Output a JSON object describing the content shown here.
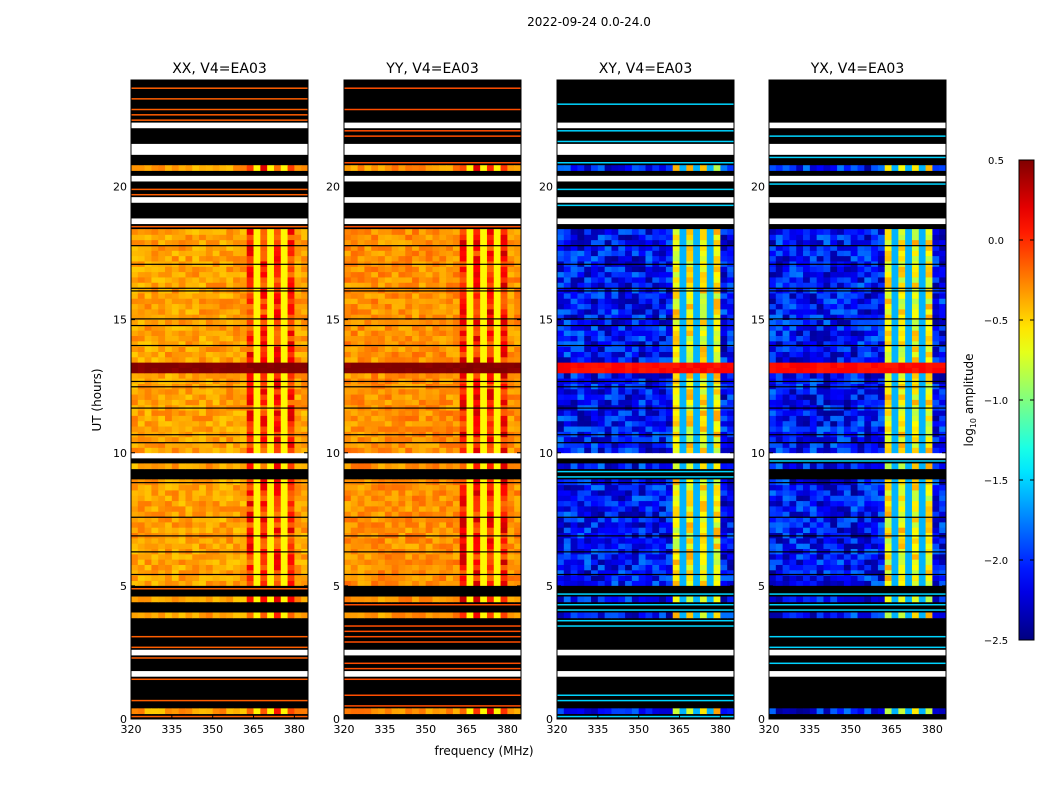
{
  "figure": {
    "suptitle": "2022-09-24 0.0-24.0",
    "ylabel": "UT (hours)",
    "xlabel": "frequency (MHz)"
  },
  "colorbar": {
    "label_prefix": "log",
    "label_sub": "10",
    "label_suffix": " amplitude",
    "range": [
      -2.5,
      0.5
    ],
    "ticks": [
      0.5,
      0.0,
      -0.5,
      -1.0,
      -1.5,
      -2.0,
      -2.5
    ],
    "tick_labels": [
      "0.5",
      "0.0",
      "−0.5",
      "−1.0",
      "−1.5",
      "−2.0",
      "−2.5"
    ],
    "colormap": "jet"
  },
  "chart_data": [
    {
      "type": "heatmap",
      "title": "XX, V4=EA03",
      "xlabel": "",
      "ylabel": "UT (hours)",
      "xlim": [
        320,
        385
      ],
      "ylim": [
        0,
        24
      ],
      "xticks": [
        320,
        335,
        350,
        365,
        380
      ],
      "yticks": [
        0,
        5,
        10,
        15,
        20
      ],
      "product": "auto",
      "base_level": -0.35,
      "rfi_band_MHz": [
        362,
        380
      ],
      "rfi_level": 0.0,
      "flare_hours": [
        12.9,
        13.4
      ],
      "flare_level": 0.5
    },
    {
      "type": "heatmap",
      "title": "YY, V4=EA03",
      "xlabel": "frequency (MHz)",
      "ylabel": "",
      "xlim": [
        320,
        385
      ],
      "ylim": [
        0,
        24
      ],
      "xticks": [
        320,
        335,
        350,
        365,
        380
      ],
      "yticks": [
        0,
        5,
        10,
        15,
        20
      ],
      "product": "auto",
      "base_level": -0.3,
      "rfi_band_MHz": [
        362,
        380
      ],
      "rfi_level": 0.05,
      "flare_hours": [
        12.9,
        13.4
      ],
      "flare_level": 0.5
    },
    {
      "type": "heatmap",
      "title": "XY, V4=EA03",
      "xlabel": "",
      "ylabel": "",
      "xlim": [
        320,
        385
      ],
      "ylim": [
        0,
        24
      ],
      "xticks": [
        320,
        335,
        350,
        365,
        380
      ],
      "yticks": [
        0,
        5,
        10,
        15,
        20
      ],
      "product": "cross",
      "base_level": -2.1,
      "rfi_band_MHz": [
        362,
        380
      ],
      "rfi_level": -0.6,
      "flare_hours": [
        12.9,
        13.4
      ],
      "flare_level": 0.1
    },
    {
      "type": "heatmap",
      "title": "YX, V4=EA03",
      "xlabel": "",
      "ylabel": "",
      "xlim": [
        320,
        385
      ],
      "ylim": [
        0,
        24
      ],
      "xticks": [
        320,
        335,
        350,
        365,
        380
      ],
      "yticks": [
        0,
        5,
        10,
        15,
        20
      ],
      "product": "cross",
      "base_level": -2.1,
      "rfi_band_MHz": [
        362,
        380
      ],
      "rfi_level": -0.6,
      "flare_hours": [
        12.9,
        13.4
      ],
      "flare_level": 0.1
    }
  ],
  "flagged_hours": [
    [
      0.0,
      0.2
    ],
    [
      0.35,
      0.75
    ],
    [
      0.9,
      1.2
    ],
    [
      1.3,
      1.6
    ],
    [
      1.85,
      2.45
    ],
    [
      2.55,
      3.0
    ],
    [
      3.05,
      3.4
    ],
    [
      3.5,
      3.9
    ],
    [
      4.1,
      4.5
    ],
    [
      4.6,
      4.95
    ],
    [
      9.1,
      9.4
    ],
    [
      9.5,
      9.8
    ],
    [
      18.3,
      18.6
    ],
    [
      18.8,
      19.4
    ],
    [
      19.55,
      20.2
    ],
    [
      20.4,
      20.6
    ],
    [
      20.7,
      21.2
    ],
    [
      21.65,
      22.2
    ],
    [
      22.35,
      22.9
    ],
    [
      23.0,
      23.5
    ],
    [
      23.6,
      24.0
    ]
  ],
  "blank_hours": [
    [
      1.65,
      1.8
    ],
    [
      2.45,
      2.55
    ],
    [
      3.95,
      4.05
    ],
    [
      9.85,
      9.95
    ],
    [
      18.65,
      18.75
    ],
    [
      19.45,
      19.55
    ],
    [
      20.25,
      20.35
    ],
    [
      21.25,
      21.6
    ],
    [
      22.25,
      22.35
    ],
    [
      23.5,
      23.6
    ]
  ],
  "gap_lines_hours": [
    5.0,
    5.45,
    6.3,
    6.9,
    7.6,
    8.9,
    10.4,
    10.7,
    11.7,
    12.5,
    12.7,
    14.05,
    14.8,
    15.05,
    16.1,
    16.2,
    17.1,
    17.8
  ]
}
